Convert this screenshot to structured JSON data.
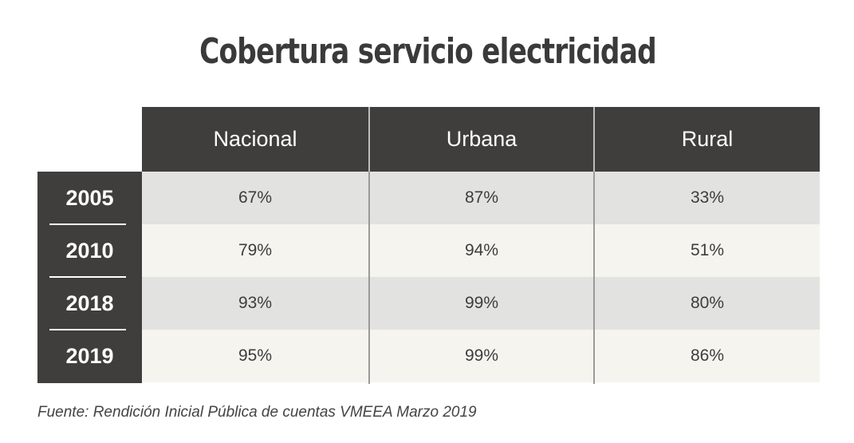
{
  "chart_data": {
    "type": "table",
    "title": "Cobertura servicio electricidad",
    "columns": [
      "Nacional",
      "Urbana",
      "Rural"
    ],
    "rows": [
      {
        "year": "2005",
        "values": [
          "67%",
          "87%",
          "33%"
        ]
      },
      {
        "year": "2010",
        "values": [
          "79%",
          "94%",
          "51%"
        ]
      },
      {
        "year": "2018",
        "values": [
          "93%",
          "99%",
          "80%"
        ]
      },
      {
        "year": "2019",
        "values": [
          "95%",
          "99%",
          "86%"
        ]
      }
    ],
    "source": "Fuente: Rendición Inicial Pública de cuentas VMEEA Marzo 2019"
  },
  "colors": {
    "header_bg": "#403d3d",
    "row_grey": "#e2e2e1",
    "row_cream": "#f6f4ef",
    "text_dark": "#3d3d3d"
  }
}
